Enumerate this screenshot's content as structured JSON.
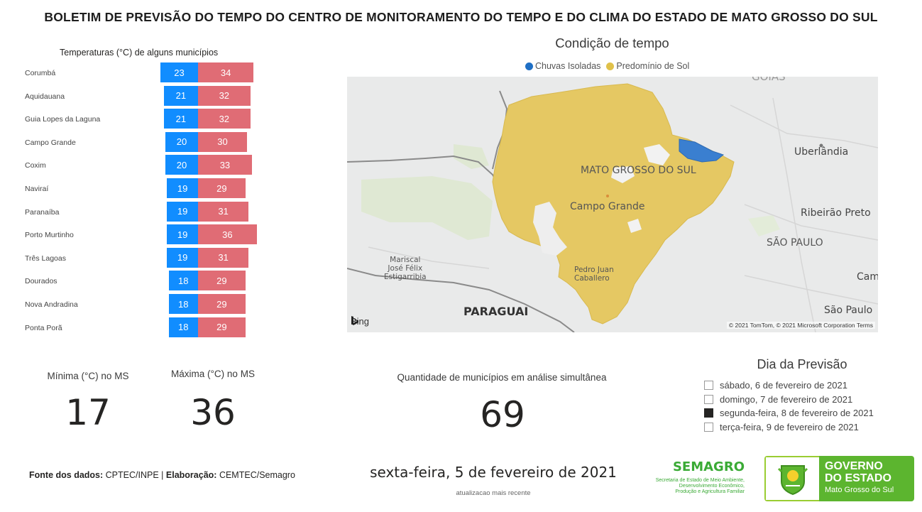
{
  "header": {
    "title": "BOLETIM DE PREVISÃO DO TEMPO DO CENTRO DE MONITORAMENTO DO TEMPO E DO CLIMA DO ESTADO DE MATO GROSSO DO SUL"
  },
  "temperature_chart": {
    "title": "Temperaturas (°C) de alguns municípios",
    "min_color": "#118dff",
    "max_color": "#e06c75",
    "rows": [
      {
        "city": "Corumbá",
        "min": "23",
        "max": "34"
      },
      {
        "city": "Aquidauana",
        "min": "21",
        "max": "32"
      },
      {
        "city": "Guia Lopes da Laguna",
        "min": "21",
        "max": "32"
      },
      {
        "city": "Campo Grande",
        "min": "20",
        "max": "30"
      },
      {
        "city": "Coxim",
        "min": "20",
        "max": "33"
      },
      {
        "city": "Naviraí",
        "min": "19",
        "max": "29"
      },
      {
        "city": "Paranaíba",
        "min": "19",
        "max": "31"
      },
      {
        "city": "Porto Murtinho",
        "min": "19",
        "max": "36"
      },
      {
        "city": "Três Lagoas",
        "min": "19",
        "max": "31"
      },
      {
        "city": "Dourados",
        "min": "18",
        "max": "29"
      },
      {
        "city": "Nova Andradina",
        "min": "18",
        "max": "29"
      },
      {
        "city": "Ponta Porã",
        "min": "18",
        "max": "29"
      }
    ]
  },
  "map": {
    "title": "Condição de tempo",
    "legend": [
      {
        "label": "Chuvas Isoladas",
        "color": "#1f6fc5"
      },
      {
        "label": "Predomínio de Sol",
        "color": "#e0c14a"
      }
    ],
    "labels": {
      "mato_grosso_do_sul": "MATO GROSSO DO SUL",
      "campo_grande": "Campo Grande",
      "uberlandia": "Uberlândia",
      "ribeirao_preto": "Ribeirão Preto",
      "sao_paulo_state": "SÃO PAULO",
      "campinas": "Campina",
      "sao_paulo_city": "São Paulo",
      "paraguai": "PARAGUAI",
      "mariscal_1": "Mariscal",
      "mariscal_2": "José Félix",
      "mariscal_3": "Estigarribia",
      "pedro_juan_1": "Pedro Juan",
      "pedro_juan_2": "Caballero",
      "goias": "GOIÁS"
    },
    "bing_label": "Bing",
    "copyright": "© 2021 TomTom, © 2021 Microsoft Corporation  Terms"
  },
  "kpis": {
    "min_label": "Mínima (°C) no MS",
    "min_value": "17",
    "max_label": "Máxima (°C) no MS",
    "max_value": "36",
    "count_label": "Quantidade de municípios em análise simultânea",
    "count_value": "69"
  },
  "slicer": {
    "title": "Dia da Previsão",
    "items": [
      {
        "label": "sábado, 6 de fevereiro de 2021",
        "checked": false
      },
      {
        "label": "domingo, 7 de fevereiro de 2021",
        "checked": false
      },
      {
        "label": "segunda-feira, 8 de fevereiro de 2021",
        "checked": true
      },
      {
        "label": "terça-feira, 9 de fevereiro de 2021",
        "checked": false
      }
    ]
  },
  "footer": {
    "source_label": "Fonte dos dados:",
    "source_value": "CPTEC/INPE",
    "separator": "|",
    "elab_label": "Elaboração:",
    "elab_value": "CEMTEC/Semagro",
    "date": "sexta-feira, 5 de fevereiro de 2021",
    "date_caption": "atualizacao mais recente"
  },
  "logos": {
    "semagro_title": "SEMAGRO",
    "semagro_sub_1": "Secretaria de Estado de Meio Ambiente,",
    "semagro_sub_2": "Desenvolvimento Econômico,",
    "semagro_sub_3": "Produção e Agricultura Familiar",
    "gov_line1": "GOVERNO",
    "gov_line2": "DO ESTADO",
    "gov_line3": "Mato Grosso do Sul"
  }
}
